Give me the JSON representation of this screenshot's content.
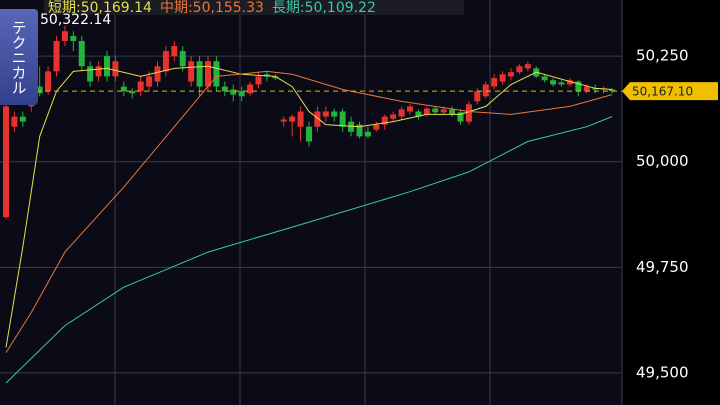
{
  "chart_data": {
    "type": "candlestick",
    "legend": [
      "短期:50,169.14",
      "中期:50,155.33",
      "長期:50,109.22"
    ],
    "button": "テクニカル",
    "high_label": "50,322.14",
    "current_price": {
      "value": 50167.1,
      "label": "50,167.10"
    },
    "ylim": [
      49424,
      50383
    ],
    "yticks": [
      {
        "value": 49500,
        "label": "49,500"
      },
      {
        "value": 49750,
        "label": "49,750"
      },
      {
        "value": 50000,
        "label": "50,000"
      },
      {
        "value": 50250,
        "label": "50,250"
      }
    ],
    "grid": true,
    "up_color": "#e8322e",
    "down_color": "#22b43c",
    "open": [
      49869,
      50083,
      50107,
      50131,
      50178,
      50167,
      50214,
      50286,
      50298,
      50286,
      50226,
      50202,
      50250,
      50202,
      50178,
      50167,
      50167,
      50178,
      50190,
      50214,
      50250,
      50262,
      50190,
      50238,
      50178,
      50238,
      50178,
      50171,
      50167,
      50162,
      50183,
      50207,
      50202,
      50095,
      50095,
      50083,
      50083,
      50083,
      50107,
      50119,
      50119,
      50095,
      50088,
      50071,
      50076,
      50088,
      50102,
      50107,
      50119,
      50119,
      50112,
      50126,
      50117,
      50124,
      50117,
      50095,
      50143,
      50155,
      50178,
      50190,
      50202,
      50212,
      50221,
      50221,
      50202,
      50193,
      50188,
      50183,
      50190,
      50167,
      50174,
      50171,
      50171
    ],
    "high": [
      50155,
      50119,
      50119,
      50190,
      50226,
      50226,
      50298,
      50322,
      50309,
      50298,
      50238,
      50238,
      50262,
      50250,
      50190,
      50174,
      50202,
      50214,
      50238,
      50274,
      50286,
      50274,
      50250,
      50250,
      50250,
      50250,
      50190,
      50183,
      50178,
      50190,
      50214,
      50214,
      50207,
      50107,
      50112,
      50131,
      50095,
      50131,
      50131,
      50126,
      50126,
      50107,
      50095,
      50083,
      50095,
      50112,
      50119,
      50131,
      50136,
      50124,
      50131,
      50131,
      50131,
      50131,
      50124,
      50143,
      50174,
      50190,
      50207,
      50214,
      50221,
      50231,
      50238,
      50226,
      50207,
      50198,
      50193,
      50198,
      50193,
      50183,
      50183,
      50178,
      50174
    ],
    "low": [
      49864,
      50071,
      50083,
      50119,
      50155,
      50159,
      50202,
      50274,
      50262,
      50214,
      50178,
      50190,
      50190,
      50190,
      50155,
      50150,
      50155,
      50167,
      50178,
      50202,
      50238,
      50214,
      50178,
      50155,
      50167,
      50167,
      50155,
      50143,
      50143,
      50155,
      50174,
      50190,
      50193,
      50083,
      50060,
      50048,
      50036,
      50071,
      50095,
      50095,
      50071,
      50060,
      50055,
      50055,
      50071,
      50076,
      50095,
      50100,
      50112,
      50100,
      50107,
      50112,
      50112,
      50107,
      50088,
      50088,
      50136,
      50150,
      50171,
      50183,
      50193,
      50207,
      50214,
      50198,
      50188,
      50178,
      50178,
      50178,
      50155,
      50162,
      50162,
      50162,
      50162
    ],
    "close": [
      50131,
      50107,
      50095,
      50178,
      50162,
      50214,
      50286,
      50309,
      50286,
      50226,
      50190,
      50226,
      50202,
      50238,
      50167,
      50162,
      50190,
      50202,
      50226,
      50262,
      50274,
      50226,
      50238,
      50178,
      50238,
      50178,
      50167,
      50159,
      50155,
      50183,
      50202,
      50202,
      50198,
      50100,
      50107,
      50119,
      50048,
      50119,
      50119,
      50107,
      50083,
      50071,
      50060,
      50060,
      50088,
      50107,
      50112,
      50124,
      50131,
      50107,
      50126,
      50117,
      50124,
      50112,
      50095,
      50136,
      50167,
      50183,
      50198,
      50207,
      50212,
      50226,
      50231,
      50202,
      50193,
      50183,
      50183,
      50193,
      50167,
      50178,
      50171,
      50174,
      50167
    ],
    "series": [
      {
        "name": "短期",
        "color": "#e6df4e",
        "x": [
          0,
          2,
          4,
          6,
          8,
          12,
          16,
          20,
          24,
          28,
          32,
          34,
          36,
          38,
          42,
          46,
          50,
          54,
          57,
          60,
          63,
          67,
          70,
          72
        ],
        "values": [
          49560,
          49798,
          50060,
          50167,
          50214,
          50221,
          50202,
          50221,
          50226,
          50207,
          50202,
          50178,
          50119,
          50088,
          50083,
          50095,
          50112,
          50112,
          50131,
          50183,
          50212,
          50190,
          50174,
          50171
        ]
      },
      {
        "name": "中期",
        "color": "#e8763a",
        "x": [
          0,
          3,
          7,
          14,
          21,
          25,
          31,
          34,
          40,
          47,
          55,
          60,
          67,
          72
        ],
        "values": [
          49548,
          49643,
          49786,
          49940,
          50107,
          50202,
          50214,
          50207,
          50171,
          50143,
          50119,
          50112,
          50131,
          50159
        ]
      },
      {
        "name": "長期",
        "color": "#3cc8a0",
        "x": [
          0,
          7,
          14,
          24,
          36,
          48,
          55,
          62,
          69,
          72
        ],
        "values": [
          49476,
          49612,
          49703,
          49786,
          49857,
          49929,
          49976,
          50048,
          50083,
          50107
        ]
      }
    ]
  }
}
